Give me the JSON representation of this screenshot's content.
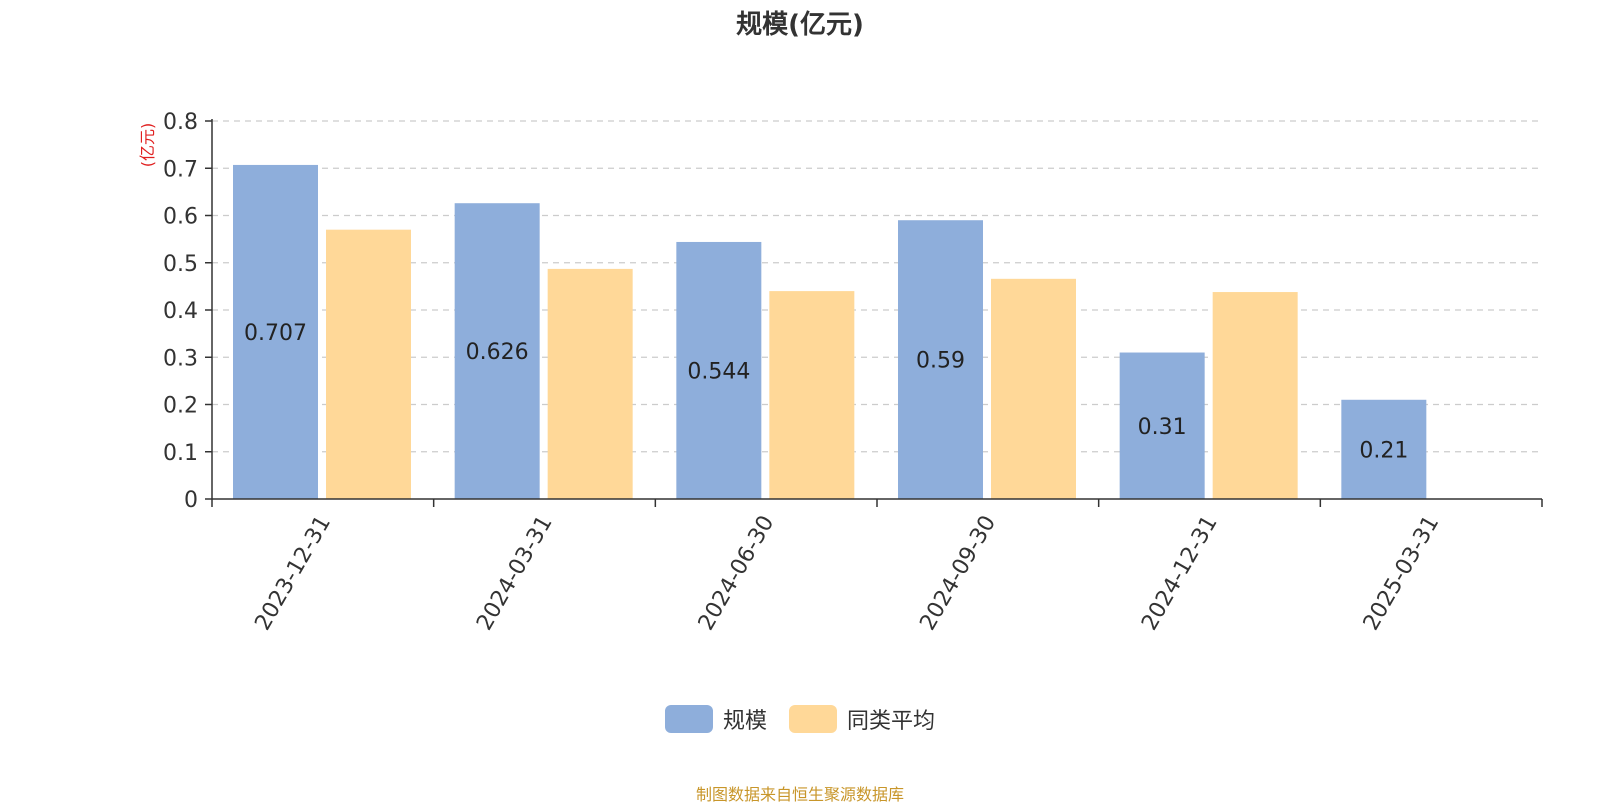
{
  "chart_data": {
    "type": "bar",
    "title": "规模(亿元)",
    "ylabel": "(亿元)",
    "categories": [
      "2023-12-31",
      "2024-03-31",
      "2024-06-30",
      "2024-09-30",
      "2024-12-31",
      "2025-03-31"
    ],
    "series": [
      {
        "name": "规模",
        "values": [
          0.707,
          0.626,
          0.544,
          0.59,
          0.31,
          0.21
        ],
        "color": "#8eaedb",
        "labels": [
          "0.707",
          "0.626",
          "0.544",
          "0.59",
          "0.31",
          "0.21"
        ]
      },
      {
        "name": "同类平均",
        "values": [
          0.57,
          0.487,
          0.44,
          0.466,
          0.438,
          null
        ],
        "color": "#ffd898"
      }
    ],
    "ylim": [
      0,
      0.8
    ],
    "yticks": [
      "0",
      "0.1",
      "0.2",
      "0.3",
      "0.4",
      "0.5",
      "0.6",
      "0.7",
      "0.8"
    ],
    "grid": true,
    "legend_position": "bottom-center"
  },
  "source_text": "制图数据来自恒生聚源数据库",
  "ylabel_color": "#e02020"
}
